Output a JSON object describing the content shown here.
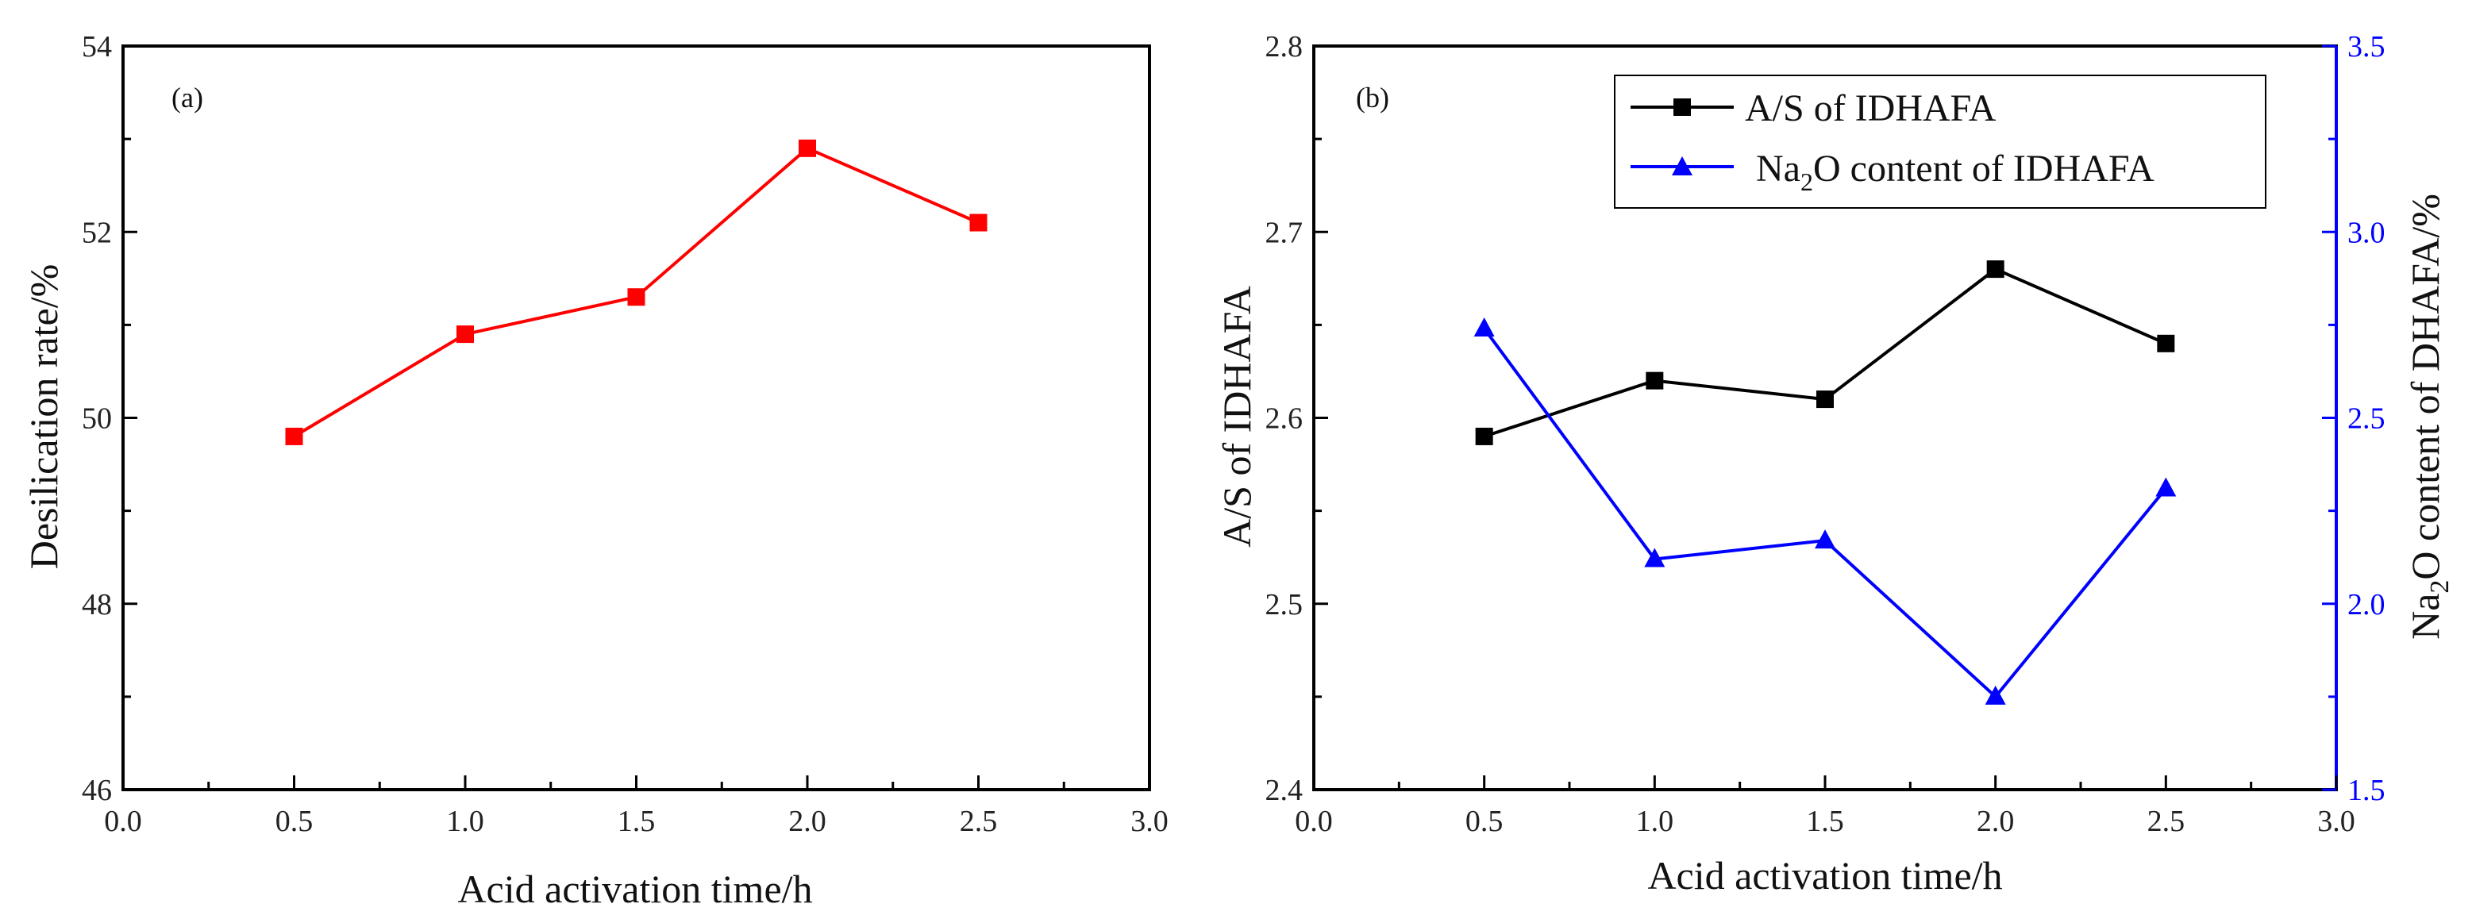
{
  "chart_data": [
    {
      "type": "line",
      "panel_label": "(a)",
      "xlabel": "Acid activation time/h",
      "ylabel": "Desilication rate/%",
      "xlim": [
        0.0,
        3.0
      ],
      "ylim": [
        46,
        54
      ],
      "x_ticks": [
        "0.0",
        "0.5",
        "1.0",
        "1.5",
        "2.0",
        "2.5",
        "3.0"
      ],
      "y_ticks": [
        "46",
        "48",
        "50",
        "52",
        "54"
      ],
      "series": [
        {
          "name": "Desilication rate",
          "color": "#ff0000",
          "marker": "square",
          "x": [
            0.5,
            1.0,
            1.5,
            2.0,
            2.5
          ],
          "values": [
            49.8,
            50.9,
            51.3,
            52.9,
            52.1
          ]
        }
      ]
    },
    {
      "type": "line",
      "panel_label": "(b)",
      "xlabel": "Acid activation time/h",
      "ylabel": "A/S of IDHAFA",
      "ylabel_right": "Na2O content of DHAFA/%",
      "xlim": [
        0.0,
        3.0
      ],
      "ylim": [
        2.4,
        2.8
      ],
      "ylim_right": [
        1.5,
        3.5
      ],
      "x_ticks": [
        "0.0",
        "0.5",
        "1.0",
        "1.5",
        "2.0",
        "2.5",
        "3.0"
      ],
      "y_ticks": [
        "2.4",
        "2.5",
        "2.6",
        "2.7",
        "2.8"
      ],
      "y_ticks_right": [
        "1.5",
        "2.0",
        "2.5",
        "3.0",
        "3.5"
      ],
      "legend_position": "top-right",
      "series": [
        {
          "name": "A/S of IDHAFA",
          "axis": "left",
          "color": "#000000",
          "marker": "square",
          "x": [
            0.5,
            1.0,
            1.5,
            2.0,
            2.5
          ],
          "values": [
            2.59,
            2.62,
            2.61,
            2.68,
            2.64
          ]
        },
        {
          "name": "Na2O content of IDHAFA",
          "axis": "right",
          "color": "#0000ff",
          "marker": "triangle",
          "x": [
            0.5,
            1.0,
            1.5,
            2.0,
            2.5
          ],
          "values": [
            2.74,
            2.12,
            2.17,
            1.75,
            2.31
          ]
        }
      ]
    }
  ]
}
